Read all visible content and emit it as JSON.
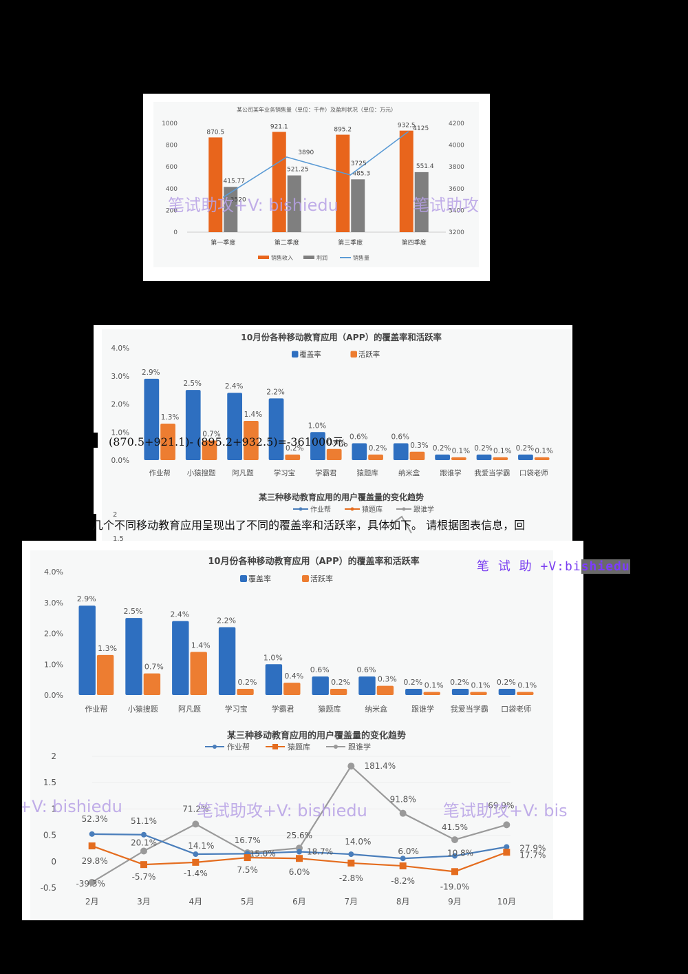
{
  "watermark": {
    "text1": "笔试助攻+V: bishiedu",
    "text2": "笔试助攻",
    "text3": "+V: bishiedu",
    "text4": "笔试助攻+V: bishiedu",
    "text5": "笔试助攻+V: bis",
    "badge_prefix": "笔 试 助 +V:bi",
    "badge_highlight": "shiedu"
  },
  "document": {
    "formula_line": "(870.5+921.1)- (895.2+932.5)=-361000元。",
    "question_line": "几个不同移动教育应用呈现出了不同的覆盖率和活跃率，具体如下。 请根据图表信息，回"
  },
  "chart_data": [
    {
      "type": "bar+line",
      "title": "某公司某年业务销售量（单位：千件）及盈利状况（单位：万元）",
      "categories": [
        "第一季度",
        "第二季度",
        "第三季度",
        "第四季度"
      ],
      "series": [
        {
          "name": "销售收入",
          "type": "bar",
          "axis": "left",
          "color": "#e8651c",
          "values": [
            870.5,
            921.1,
            895.2,
            932.5
          ]
        },
        {
          "name": "利润",
          "type": "bar",
          "axis": "left",
          "color": "#7f7f7f",
          "values": [
            415.77,
            521.25,
            485.3,
            551.4
          ]
        },
        {
          "name": "销售量",
          "type": "line",
          "axis": "right",
          "color": "#5b9bd5",
          "values": [
            3520,
            3890,
            3725,
            4125
          ]
        }
      ],
      "left_axis": {
        "ticks": [
          "0",
          "200",
          "400",
          "600",
          "800",
          "1000"
        ],
        "range": [
          0,
          1000
        ]
      },
      "right_axis": {
        "ticks": [
          "3200",
          "3400",
          "3600",
          "3800",
          "4000",
          "4200"
        ],
        "range": [
          3200,
          4200
        ]
      },
      "legend": [
        "销售收入",
        "利润",
        "销售量"
      ],
      "legend_position": "bottom"
    },
    {
      "type": "bar",
      "title": "10月份各种移动教育应用（APP）的覆盖率和活跃率",
      "categories": [
        "作业帮",
        "小猿搜题",
        "阿凡题",
        "学习宝",
        "学霸君",
        "猿题库",
        "纳米盒",
        "跟谁学",
        "我爱当学霸",
        "口袋老师"
      ],
      "series": [
        {
          "name": "覆盖率",
          "color": "#2e6fc0",
          "values": [
            2.9,
            2.5,
            2.4,
            2.2,
            1.0,
            0.6,
            0.6,
            0.2,
            0.2,
            0.2
          ],
          "labels": [
            "2.9%",
            "2.5%",
            "2.4%",
            "2.2%",
            "1.0%",
            "0.6%",
            "0.6%",
            "0.2%",
            "0.2%",
            "0.2%"
          ]
        },
        {
          "name": "活跃率",
          "color": "#ed7d31",
          "values": [
            1.3,
            0.7,
            1.4,
            0.2,
            0.4,
            0.2,
            0.3,
            0.1,
            0.1,
            0.1
          ],
          "labels": [
            "1.3%",
            "0.7%",
            "1.4%",
            "0.2%",
            "0.4%",
            "0.2%",
            "0.3%",
            "0.1%",
            "0.1%",
            "0.1%"
          ]
        }
      ],
      "yticks": [
        "0.0%",
        "1.0%",
        "2.0%",
        "3.0%",
        "4.0%"
      ],
      "ylim": [
        0,
        4.0
      ],
      "legend": [
        "覆盖率",
        "活跃率"
      ],
      "legend_position": "top"
    },
    {
      "type": "line",
      "title": "某三种移动教育应用的用户覆盖量的变化趋势",
      "categories": [
        "2月",
        "3月",
        "4月",
        "5月",
        "6月",
        "7月",
        "8月",
        "9月",
        "10月"
      ],
      "series": [
        {
          "name": "作业帮",
          "color": "#4a7ebb",
          "values": [
            0.523,
            0.511,
            0.141,
            0.15,
            0.187,
            0.14,
            0.06,
            0.108,
            0.279
          ],
          "labels": [
            "52.3%",
            "51.1%",
            "14.1%",
            "15.0%",
            "18.7%",
            "14.0%",
            "6.0%",
            "10.8%",
            "27.9%"
          ]
        },
        {
          "name": "猿题库",
          "color": "#e46c1e",
          "values": [
            0.298,
            -0.057,
            -0.014,
            0.075,
            0.06,
            -0.028,
            -0.082,
            -0.19,
            0.177
          ],
          "labels": [
            "29.8%",
            "-5.7%",
            "-1.4%",
            "7.5%",
            "6.0%",
            "-2.8%",
            "-8.2%",
            "-19.0%",
            "17.7%"
          ]
        },
        {
          "name": "跟谁学",
          "color": "#9a9a9a",
          "values": [
            -0.393,
            0.201,
            0.712,
            0.167,
            0.256,
            1.814,
            0.918,
            0.415,
            0.699
          ],
          "labels": [
            "-39.3%",
            "20.1%",
            "71.2%",
            "16.7%",
            "25.6%",
            "181.4%",
            "91.8%",
            "41.5%",
            "69.9%"
          ]
        }
      ],
      "yticks": [
        "-0.5",
        "0",
        "0.5",
        "1",
        "1.5",
        "2"
      ],
      "ylim": [
        -0.5,
        2
      ],
      "legend": [
        "作业帮",
        "猿题库",
        "跟谁学"
      ],
      "legend_position": "top"
    }
  ]
}
